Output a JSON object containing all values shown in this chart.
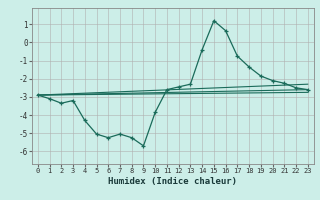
{
  "xlabel": "Humidex (Indice chaleur)",
  "background_color": "#cceee8",
  "grid_color": "#b0b0b0",
  "line_color": "#1a6b5a",
  "xlim": [
    -0.5,
    23.5
  ],
  "ylim": [
    -6.7,
    1.9
  ],
  "yticks": [
    1,
    0,
    -1,
    -2,
    -3,
    -4,
    -5,
    -6
  ],
  "xticks": [
    0,
    1,
    2,
    3,
    4,
    5,
    6,
    7,
    8,
    9,
    10,
    11,
    12,
    13,
    14,
    15,
    16,
    17,
    18,
    19,
    20,
    21,
    22,
    23
  ],
  "series1_x": [
    0,
    1,
    2,
    3,
    4,
    5,
    6,
    7,
    8,
    9,
    10,
    11,
    12,
    13,
    14,
    15,
    16,
    17,
    18,
    19,
    20,
    21,
    22,
    23
  ],
  "series1_y": [
    -2.9,
    -3.1,
    -3.35,
    -3.2,
    -4.3,
    -5.05,
    -5.25,
    -5.05,
    -5.25,
    -5.7,
    -3.85,
    -2.6,
    -2.45,
    -2.3,
    -0.4,
    1.2,
    0.65,
    -0.75,
    -1.35,
    -1.85,
    -2.1,
    -2.25,
    -2.5,
    -2.6
  ],
  "line1_x": [
    0,
    23
  ],
  "line1_y": [
    -2.9,
    -2.6
  ],
  "line2_x": [
    0,
    23
  ],
  "line2_y": [
    -2.9,
    -2.75
  ],
  "line3_x": [
    0,
    23
  ],
  "line3_y": [
    -2.9,
    -2.3
  ]
}
